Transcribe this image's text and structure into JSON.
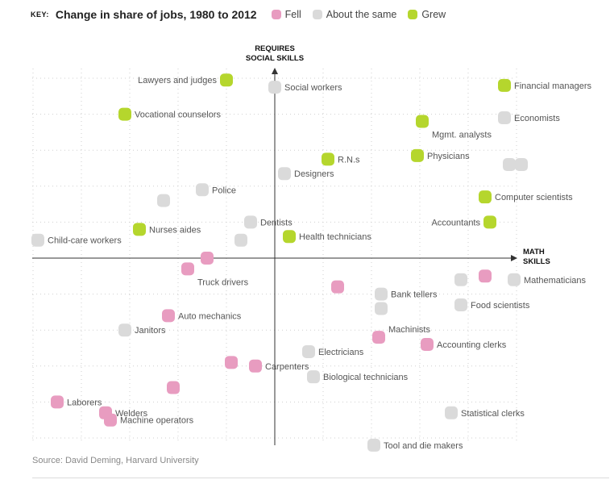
{
  "key": {
    "label": "KEY:",
    "title": "Change in share of jobs, 1980 to 2012",
    "legend": [
      {
        "id": "fell",
        "label": "Fell",
        "color": "#e89cc0"
      },
      {
        "id": "same",
        "label": "About the same",
        "color": "#dadada"
      },
      {
        "id": "grew",
        "label": "Grew",
        "color": "#b5d62d"
      }
    ]
  },
  "source": "Source: David Deming, Harvard University",
  "chart_data": {
    "type": "scatter",
    "axes": {
      "y_label": [
        "REQUIRES",
        "SOCIAL SKILLS"
      ],
      "x_label": [
        "MATH",
        "SKILLS"
      ],
      "xlim": [
        -10,
        10
      ],
      "ylim": [
        -10,
        10
      ],
      "grid": true
    },
    "points": [
      {
        "label": "Lawyers and judges",
        "x": -2.0,
        "y": 9.9,
        "status": "grew",
        "label_side": "left"
      },
      {
        "label": "Social workers",
        "x": 0.0,
        "y": 9.5,
        "status": "same",
        "label_side": "right"
      },
      {
        "label": "Financial managers",
        "x": 9.5,
        "y": 9.6,
        "status": "grew",
        "label_side": "right"
      },
      {
        "label": "Vocational counselors",
        "x": -6.2,
        "y": 8.0,
        "status": "grew",
        "label_side": "right"
      },
      {
        "label": "Economists",
        "x": 9.5,
        "y": 7.8,
        "status": "same",
        "label_side": "right"
      },
      {
        "label": "Mgmt. analysts",
        "x": 6.1,
        "y": 7.6,
        "status": "grew",
        "label_side": "below-right"
      },
      {
        "label": "Physicians",
        "x": 5.9,
        "y": 5.7,
        "status": "grew",
        "label_side": "right"
      },
      {
        "label": "R.N.s",
        "x": 2.2,
        "y": 5.5,
        "status": "grew",
        "label_side": "right"
      },
      {
        "label": "",
        "x": 9.7,
        "y": 5.2,
        "status": "same",
        "label_side": "none"
      },
      {
        "label": "",
        "x": 10.2,
        "y": 5.2,
        "status": "same",
        "label_side": "none"
      },
      {
        "label": "Designers",
        "x": 0.4,
        "y": 4.7,
        "status": "same",
        "label_side": "right"
      },
      {
        "label": "Police",
        "x": -3.0,
        "y": 3.8,
        "status": "same",
        "label_side": "right"
      },
      {
        "label": "",
        "x": -4.6,
        "y": 3.2,
        "status": "same",
        "label_side": "none"
      },
      {
        "label": "Computer scientists",
        "x": 8.7,
        "y": 3.4,
        "status": "grew",
        "label_side": "right"
      },
      {
        "label": "Dentists",
        "x": -1.0,
        "y": 2.0,
        "status": "same",
        "label_side": "right"
      },
      {
        "label": "Accountants",
        "x": 8.9,
        "y": 2.0,
        "status": "grew",
        "label_side": "left"
      },
      {
        "label": "Nurses aides",
        "x": -5.6,
        "y": 1.6,
        "status": "grew",
        "label_side": "right"
      },
      {
        "label": "Health technicians",
        "x": 0.6,
        "y": 1.2,
        "status": "grew",
        "label_side": "right"
      },
      {
        "label": "Child-care workers",
        "x": -9.8,
        "y": 1.0,
        "status": "same",
        "label_side": "right"
      },
      {
        "label": "",
        "x": -1.4,
        "y": 1.0,
        "status": "same",
        "label_side": "none"
      },
      {
        "label": "",
        "x": -2.8,
        "y": 0.0,
        "status": "fell",
        "label_side": "none"
      },
      {
        "label": "Truck drivers",
        "x": -3.6,
        "y": -0.6,
        "status": "fell",
        "label_side": "below-right"
      },
      {
        "label": "",
        "x": 8.7,
        "y": -1.0,
        "status": "fell",
        "label_side": "none"
      },
      {
        "label": "",
        "x": 7.7,
        "y": -1.2,
        "status": "same",
        "label_side": "none"
      },
      {
        "label": "Mathematicians",
        "x": 9.9,
        "y": -1.2,
        "status": "same",
        "label_side": "right"
      },
      {
        "label": "",
        "x": 2.6,
        "y": -1.6,
        "status": "fell",
        "label_side": "none"
      },
      {
        "label": "Bank tellers",
        "x": 4.4,
        "y": -2.0,
        "status": "same",
        "label_side": "right"
      },
      {
        "label": "Food scientists",
        "x": 7.7,
        "y": -2.6,
        "status": "same",
        "label_side": "right"
      },
      {
        "label": "",
        "x": 4.4,
        "y": -2.8,
        "status": "same",
        "label_side": "none"
      },
      {
        "label": "Auto mechanics",
        "x": -4.4,
        "y": -3.2,
        "status": "fell",
        "label_side": "right"
      },
      {
        "label": "Janitors",
        "x": -6.2,
        "y": -4.0,
        "status": "same",
        "label_side": "right"
      },
      {
        "label": "Machinists",
        "x": 4.3,
        "y": -4.4,
        "status": "fell",
        "label_side": "above-right"
      },
      {
        "label": "Accounting clerks",
        "x": 6.3,
        "y": -4.8,
        "status": "fell",
        "label_side": "right"
      },
      {
        "label": "Electricians",
        "x": 1.4,
        "y": -5.2,
        "status": "same",
        "label_side": "right"
      },
      {
        "label": "",
        "x": -1.8,
        "y": -5.8,
        "status": "fell",
        "label_side": "none"
      },
      {
        "label": "Carpenters",
        "x": -0.8,
        "y": -6.0,
        "status": "fell",
        "label_side": "right"
      },
      {
        "label": "Biological technicians",
        "x": 1.6,
        "y": -6.6,
        "status": "same",
        "label_side": "right"
      },
      {
        "label": "",
        "x": -4.2,
        "y": -7.2,
        "status": "fell",
        "label_side": "none"
      },
      {
        "label": "Laborers",
        "x": -9.0,
        "y": -8.0,
        "status": "fell",
        "label_side": "right"
      },
      {
        "label": "Welders",
        "x": -7.0,
        "y": -8.6,
        "status": "fell",
        "label_side": "right"
      },
      {
        "label": "Machine operators",
        "x": -6.8,
        "y": -9.0,
        "status": "fell",
        "label_side": "right"
      },
      {
        "label": "Statistical clerks",
        "x": 7.3,
        "y": -8.6,
        "status": "same",
        "label_side": "right"
      },
      {
        "label": "Tool and die makers",
        "x": 4.1,
        "y": -10.4,
        "status": "same",
        "label_side": "right"
      }
    ]
  }
}
